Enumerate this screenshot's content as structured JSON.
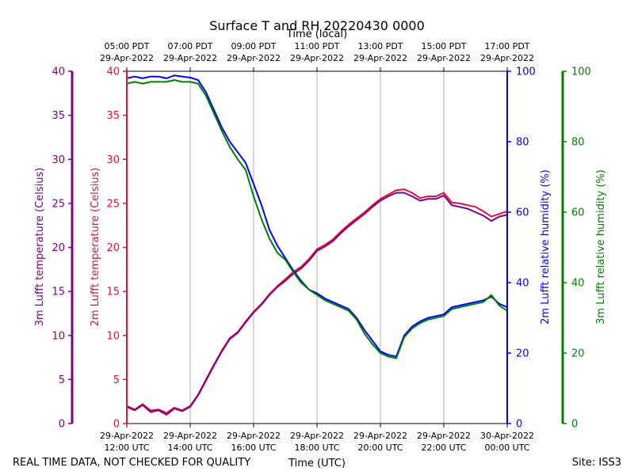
{
  "chart_data": {
    "type": "line",
    "title": "Surface T and RH 20220430 0000",
    "top_axis_label": "Time (local)",
    "xlabel": "Time (UTC)",
    "footer_left": "REAL TIME DATA, NOT CHECKED FOR QUALITY",
    "footer_right": "Site: ISS3",
    "x_range_hours_utc": [
      12,
      24
    ],
    "x_ticks": [
      {
        "hour": 12,
        "utc_date": "29-Apr-2022",
        "utc_time": "12:00 UTC",
        "local_time": "05:00 PDT",
        "local_date": "29-Apr-2022"
      },
      {
        "hour": 14,
        "utc_date": "29-Apr-2022",
        "utc_time": "14:00 UTC",
        "local_time": "07:00 PDT",
        "local_date": "29-Apr-2022"
      },
      {
        "hour": 16,
        "utc_date": "29-Apr-2022",
        "utc_time": "16:00 UTC",
        "local_time": "09:00 PDT",
        "local_date": "29-Apr-2022"
      },
      {
        "hour": 18,
        "utc_date": "29-Apr-2022",
        "utc_time": "18:00 UTC",
        "local_time": "11:00 PDT",
        "local_date": "29-Apr-2022"
      },
      {
        "hour": 20,
        "utc_date": "29-Apr-2022",
        "utc_time": "20:00 UTC",
        "local_time": "13:00 PDT",
        "local_date": "29-Apr-2022"
      },
      {
        "hour": 22,
        "utc_date": "29-Apr-2022",
        "utc_time": "22:00 UTC",
        "local_time": "15:00 PDT",
        "local_date": "29-Apr-2022"
      },
      {
        "hour": 24,
        "utc_date": "30-Apr-2022",
        "utc_time": "00:00 UTC",
        "local_time": "17:00 PDT",
        "local_date": "29-Apr-2022"
      }
    ],
    "grid": "vertical",
    "axes": {
      "t3m": {
        "label": "3m Lufft temperature (Celsius)",
        "range": [
          0,
          40
        ],
        "ticks": [
          0,
          5,
          10,
          15,
          20,
          25,
          30,
          35,
          40
        ],
        "color": "#800080"
      },
      "t2m": {
        "label": "2m Lufft temperature (Celsius)",
        "range": [
          0,
          40
        ],
        "ticks": [
          0,
          5,
          10,
          15,
          20,
          25,
          30,
          35,
          40
        ],
        "color": "#dc143c"
      },
      "rh2m": {
        "label": "2m Lufft relative humidity (%)",
        "range": [
          0,
          100
        ],
        "ticks": [
          0,
          20,
          40,
          60,
          80,
          100
        ],
        "color": "#0000ff"
      },
      "rh3m": {
        "label": "3m Lufft relative humidity (%)",
        "range": [
          0,
          100
        ],
        "ticks": [
          0,
          20,
          40,
          60,
          80,
          100
        ],
        "color": "#008000"
      }
    },
    "series": [
      {
        "axis": "t2m",
        "color": "#dc143c",
        "x": [
          12.0,
          12.25,
          12.5,
          12.75,
          13.0,
          13.25,
          13.5,
          13.75,
          14.0,
          14.25,
          14.5,
          14.75,
          15.0,
          15.25,
          15.5,
          15.75,
          16.0,
          16.25,
          16.5,
          16.75,
          17.0,
          17.25,
          17.5,
          17.75,
          18.0,
          18.25,
          18.5,
          18.75,
          19.0,
          19.25,
          19.5,
          19.75,
          20.0,
          20.25,
          20.5,
          20.75,
          21.0,
          21.25,
          21.5,
          21.75,
          22.0,
          22.25,
          22.5,
          22.75,
          23.0,
          23.25,
          23.5,
          23.75,
          24.0
        ],
        "y": [
          2.0,
          1.6,
          2.2,
          1.5,
          1.6,
          1.2,
          1.8,
          1.5,
          2.0,
          3.3,
          5.0,
          6.7,
          8.3,
          9.7,
          10.4,
          11.6,
          12.7,
          13.6,
          14.7,
          15.6,
          16.4,
          17.2,
          17.8,
          18.7,
          19.8,
          20.3,
          20.9,
          21.8,
          22.6,
          23.3,
          24.0,
          24.8,
          25.5,
          26.0,
          26.5,
          26.6,
          26.2,
          25.6,
          25.8,
          25.8,
          26.2,
          25.1,
          25.0,
          24.8,
          24.6,
          24.1,
          23.5,
          23.8,
          24.1
        ]
      },
      {
        "axis": "t3m",
        "color": "#800080",
        "x": [
          12.0,
          12.25,
          12.5,
          12.75,
          13.0,
          13.25,
          13.5,
          13.75,
          14.0,
          14.25,
          14.5,
          14.75,
          15.0,
          15.25,
          15.5,
          15.75,
          16.0,
          16.25,
          16.5,
          16.75,
          17.0,
          17.25,
          17.5,
          17.75,
          18.0,
          18.25,
          18.5,
          18.75,
          19.0,
          19.25,
          19.5,
          19.75,
          20.0,
          20.25,
          20.5,
          20.75,
          21.0,
          21.25,
          21.5,
          21.75,
          22.0,
          22.25,
          22.5,
          22.75,
          23.0,
          23.25,
          23.5,
          23.75,
          24.0
        ],
        "y": [
          1.9,
          1.5,
          2.1,
          1.3,
          1.5,
          1.0,
          1.7,
          1.4,
          1.9,
          3.2,
          4.9,
          6.6,
          8.2,
          9.6,
          10.3,
          11.5,
          12.6,
          13.5,
          14.6,
          15.5,
          16.2,
          17.0,
          17.6,
          18.5,
          19.6,
          20.1,
          20.7,
          21.6,
          22.4,
          23.1,
          23.8,
          24.6,
          25.3,
          25.8,
          26.2,
          26.2,
          25.8,
          25.3,
          25.5,
          25.5,
          25.9,
          24.8,
          24.6,
          24.4,
          24.0,
          23.6,
          23.0,
          23.5,
          23.7
        ]
      },
      {
        "axis": "rh2m",
        "color": "#0000ff",
        "x": [
          12.0,
          12.25,
          12.5,
          12.75,
          13.0,
          13.25,
          13.5,
          13.75,
          14.0,
          14.25,
          14.5,
          14.75,
          15.0,
          15.25,
          15.5,
          15.75,
          16.0,
          16.25,
          16.5,
          16.75,
          17.0,
          17.25,
          17.5,
          17.75,
          18.0,
          18.25,
          18.5,
          18.75,
          19.0,
          19.25,
          19.5,
          19.75,
          20.0,
          20.25,
          20.5,
          20.75,
          21.0,
          21.25,
          21.5,
          21.75,
          22.0,
          22.25,
          22.5,
          22.75,
          23.0,
          23.25,
          23.5,
          23.75,
          24.0
        ],
        "y": [
          98.0,
          98.5,
          98.0,
          98.5,
          98.5,
          98.0,
          98.8,
          98.5,
          98.2,
          97.5,
          94.0,
          89.0,
          84.0,
          80.0,
          77.0,
          74.0,
          68.0,
          62.0,
          55.0,
          50.5,
          47.0,
          43.5,
          40.5,
          38.0,
          37.0,
          35.5,
          34.5,
          33.5,
          32.5,
          30.0,
          26.5,
          23.5,
          20.5,
          19.5,
          19.0,
          25.0,
          27.5,
          29.0,
          30.0,
          30.5,
          31.0,
          33.0,
          33.5,
          34.0,
          34.5,
          35.0,
          36.0,
          34.0,
          33.0
        ]
      },
      {
        "axis": "rh3m",
        "color": "#008000",
        "x": [
          12.0,
          12.25,
          12.5,
          12.75,
          13.0,
          13.25,
          13.5,
          13.75,
          14.0,
          14.25,
          14.5,
          14.75,
          15.0,
          15.25,
          15.5,
          15.75,
          16.0,
          16.25,
          16.5,
          16.75,
          17.0,
          17.25,
          17.5,
          17.75,
          18.0,
          18.25,
          18.5,
          18.75,
          19.0,
          19.25,
          19.5,
          19.75,
          20.0,
          20.25,
          20.5,
          20.75,
          21.0,
          21.25,
          21.5,
          21.75,
          22.0,
          22.25,
          22.5,
          22.75,
          23.0,
          23.25,
          23.5,
          23.75,
          24.0
        ],
        "y": [
          96.5,
          97.0,
          96.5,
          97.0,
          97.0,
          97.0,
          97.5,
          97.0,
          97.0,
          96.5,
          93.0,
          88.0,
          83.0,
          78.5,
          75.0,
          72.0,
          64.5,
          58.0,
          52.5,
          48.5,
          46.5,
          43.0,
          40.0,
          38.0,
          36.5,
          35.0,
          34.0,
          33.0,
          32.0,
          29.5,
          25.5,
          22.5,
          20.0,
          19.0,
          18.5,
          24.5,
          27.0,
          28.5,
          29.5,
          30.0,
          30.5,
          32.5,
          33.0,
          33.5,
          34.0,
          34.5,
          36.5,
          33.5,
          32.0
        ]
      }
    ]
  }
}
